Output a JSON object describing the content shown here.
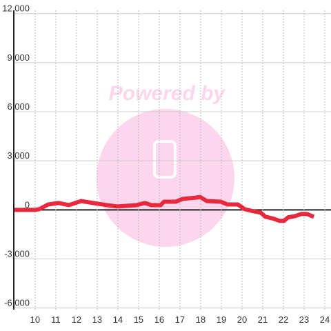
{
  "chart_data": {
    "type": "line",
    "watermark": "Powered by",
    "x": [
      9.0,
      10.0,
      10.2,
      10.63,
      11.13,
      11.63,
      12.23,
      12.8,
      13.47,
      13.97,
      14.47,
      14.9,
      15.3,
      15.63,
      16.07,
      16.23,
      16.8,
      17.13,
      17.8,
      17.97,
      18.3,
      18.97,
      19.3,
      19.8,
      20.13,
      20.53,
      20.9,
      21.13,
      21.53,
      21.8,
      22.03,
      22.23,
      22.57,
      22.87,
      23.13,
      23.47
    ],
    "series": [
      {
        "name": "",
        "color": "#e8283c",
        "values": [
          0,
          0,
          40,
          330,
          420,
          290,
          540,
          420,
          290,
          210,
          250,
          290,
          420,
          290,
          290,
          500,
          500,
          670,
          750,
          790,
          540,
          500,
          330,
          330,
          40,
          -80,
          -170,
          -420,
          -540,
          -670,
          -670,
          -460,
          -380,
          -250,
          -250,
          -420
        ]
      }
    ],
    "xlim": [
      8.97,
      24.3
    ],
    "xticks": [
      10,
      11,
      12,
      13,
      14,
      15,
      16,
      17,
      18,
      19,
      20,
      21,
      22,
      23,
      24
    ],
    "ylim": [
      -6100,
      12200
    ],
    "yticks": [
      {
        "value": 12000,
        "label": "12,000"
      },
      {
        "value": 9000,
        "label": "9,000"
      },
      {
        "value": 6000,
        "label": "6,000"
      },
      {
        "value": 3000,
        "label": "3,000"
      },
      0,
      {
        "value": -3000,
        "label": "-3,000"
      },
      {
        "value": -6000,
        "label": "-6,000"
      }
    ],
    "grid": true
  }
}
